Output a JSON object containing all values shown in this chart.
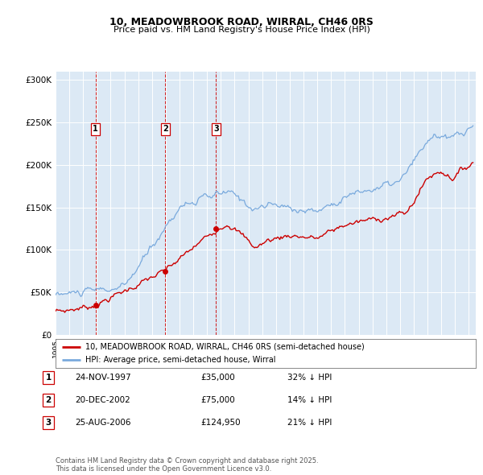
{
  "title": "10, MEADOWBROOK ROAD, WIRRAL, CH46 0RS",
  "subtitle": "Price paid vs. HM Land Registry's House Price Index (HPI)",
  "legend_line1": "10, MEADOWBROOK ROAD, WIRRAL, CH46 0RS (semi-detached house)",
  "legend_line2": "HPI: Average price, semi-detached house, Wirral",
  "sale_color": "#cc0000",
  "hpi_color": "#7aaadd",
  "transactions": [
    {
      "label": "1",
      "date_num": 1997.9,
      "price": 35000
    },
    {
      "label": "2",
      "date_num": 2002.97,
      "price": 75000
    },
    {
      "label": "3",
      "date_num": 2006.65,
      "price": 124950
    }
  ],
  "table_rows": [
    {
      "num": "1",
      "date": "24-NOV-1997",
      "price": "£35,000",
      "pct": "32% ↓ HPI"
    },
    {
      "num": "2",
      "date": "20-DEC-2002",
      "price": "£75,000",
      "pct": "14% ↓ HPI"
    },
    {
      "num": "3",
      "date": "25-AUG-2006",
      "price": "£124,950",
      "pct": "21% ↓ HPI"
    }
  ],
  "footer": "Contains HM Land Registry data © Crown copyright and database right 2025.\nThis data is licensed under the Open Government Licence v3.0.",
  "ylim": [
    0,
    310000
  ],
  "yticks": [
    0,
    50000,
    100000,
    150000,
    200000,
    250000,
    300000
  ],
  "ytick_labels": [
    "£0",
    "£50K",
    "£100K",
    "£150K",
    "£200K",
    "£250K",
    "£300K"
  ],
  "xlim_start": 1995.0,
  "xlim_end": 2025.5,
  "plot_bg_color": "#dce9f5"
}
